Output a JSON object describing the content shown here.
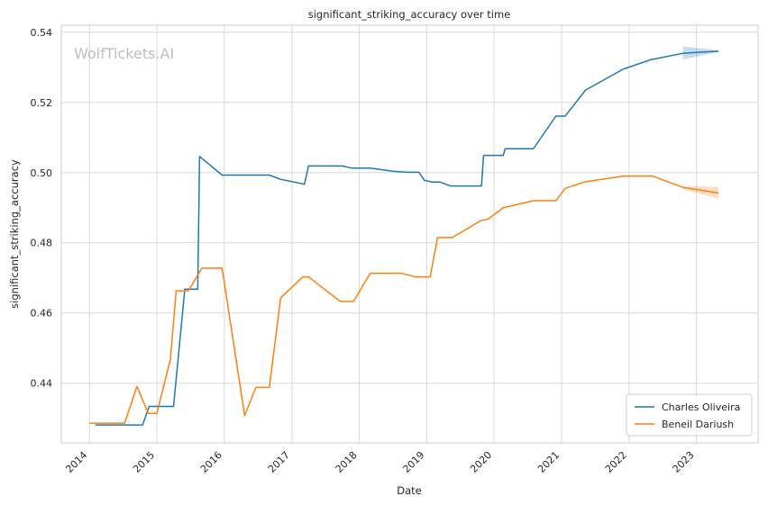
{
  "chart_data": {
    "type": "line",
    "title": "significant_striking_accuracy over time",
    "xlabel": "Date",
    "ylabel": "significant_striking_accuracy",
    "watermark": "WolfTickets.AI",
    "xlim": [
      "2013-08-01",
      "2023-12-01"
    ],
    "ylim": [
      0.423,
      0.542
    ],
    "x_ticks": [
      "2014",
      "2015",
      "2016",
      "2017",
      "2018",
      "2019",
      "2020",
      "2021",
      "2022",
      "2023"
    ],
    "y_ticks": [
      0.44,
      0.46,
      0.48,
      0.5,
      0.52,
      0.54
    ],
    "y_tick_labels": [
      "0.44",
      "0.46",
      "0.48",
      "0.50",
      "0.52",
      "0.54"
    ],
    "grid": true,
    "legend_position": "lower-right",
    "series": [
      {
        "name": "Charles Oliveira",
        "color": "#1f77b4",
        "points": [
          [
            "2014-02-01",
            0.4281
          ],
          [
            "2014-10-15",
            0.4281
          ],
          [
            "2014-11-20",
            0.4334
          ],
          [
            "2015-04-01",
            0.4334
          ],
          [
            "2015-06-01",
            0.4668
          ],
          [
            "2015-08-10",
            0.4668
          ],
          [
            "2015-08-20",
            0.5046
          ],
          [
            "2015-12-20",
            0.4993
          ],
          [
            "2016-09-01",
            0.4993
          ],
          [
            "2016-11-01",
            0.4981
          ],
          [
            "2017-03-10",
            0.4967
          ],
          [
            "2017-04-01",
            0.5019
          ],
          [
            "2017-10-01",
            0.5019
          ],
          [
            "2017-11-20",
            0.5013
          ],
          [
            "2018-03-01",
            0.5013
          ],
          [
            "2018-07-01",
            0.5004
          ],
          [
            "2018-09-20",
            0.5001
          ],
          [
            "2018-11-20",
            0.5001
          ],
          [
            "2018-12-20",
            0.4978
          ],
          [
            "2019-02-01",
            0.4973
          ],
          [
            "2019-03-15",
            0.4973
          ],
          [
            "2019-05-10",
            0.4962
          ],
          [
            "2019-10-25",
            0.4962
          ],
          [
            "2019-11-05",
            0.5049
          ],
          [
            "2020-02-20",
            0.5049
          ],
          [
            "2020-03-01",
            0.5068
          ],
          [
            "2020-08-01",
            0.5068
          ],
          [
            "2020-12-01",
            0.5161
          ],
          [
            "2021-01-20",
            0.5161
          ],
          [
            "2021-05-10",
            0.5235
          ],
          [
            "2021-12-01",
            0.5295
          ],
          [
            "2022-05-01",
            0.5322
          ],
          [
            "2022-10-20",
            0.534
          ],
          [
            "2023-05-01",
            0.5346
          ]
        ],
        "band": [
          [
            "2022-10-20",
            0.5322,
            0.536
          ],
          [
            "2023-05-01",
            0.5344,
            0.5348
          ]
        ]
      },
      {
        "name": "Beneil Dariush",
        "color": "#ff7f0e",
        "points": [
          [
            "2014-01-01",
            0.4286
          ],
          [
            "2014-07-10",
            0.4286
          ],
          [
            "2014-09-15",
            0.4391
          ],
          [
            "2014-11-15",
            0.4314
          ],
          [
            "2015-01-01",
            0.4314
          ],
          [
            "2015-03-15",
            0.4469
          ],
          [
            "2015-04-15",
            0.4663
          ],
          [
            "2015-06-20",
            0.4663
          ],
          [
            "2015-09-01",
            0.4728
          ],
          [
            "2015-12-20",
            0.4728
          ],
          [
            "2016-04-20",
            0.4308
          ],
          [
            "2016-06-20",
            0.4388
          ],
          [
            "2016-09-01",
            0.4388
          ],
          [
            "2016-11-01",
            0.4643
          ],
          [
            "2017-03-01",
            0.4703
          ],
          [
            "2017-04-01",
            0.4703
          ],
          [
            "2017-09-20",
            0.4633
          ],
          [
            "2017-12-01",
            0.4633
          ],
          [
            "2018-03-01",
            0.4713
          ],
          [
            "2018-08-20",
            0.4713
          ],
          [
            "2018-11-01",
            0.4703
          ],
          [
            "2019-01-20",
            0.4703
          ],
          [
            "2019-03-01",
            0.4815
          ],
          [
            "2019-05-20",
            0.4815
          ],
          [
            "2019-10-20",
            0.4863
          ],
          [
            "2019-12-01",
            0.4868
          ],
          [
            "2020-02-20",
            0.49
          ],
          [
            "2020-08-01",
            0.492
          ],
          [
            "2020-12-01",
            0.492
          ],
          [
            "2021-01-20",
            0.4955
          ],
          [
            "2021-05-01",
            0.4973
          ],
          [
            "2021-12-01",
            0.499
          ],
          [
            "2022-05-10",
            0.499
          ],
          [
            "2022-10-20",
            0.4958
          ],
          [
            "2023-05-01",
            0.4942
          ]
        ],
        "band": [
          [
            "2022-10-20",
            0.4954,
            0.4962
          ],
          [
            "2023-05-01",
            0.4925,
            0.496
          ]
        ]
      }
    ]
  }
}
